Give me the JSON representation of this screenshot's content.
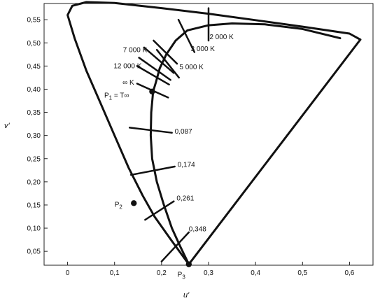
{
  "chart_data": {
    "type": "line",
    "title": "",
    "xlabel": "u'",
    "ylabel": "v'",
    "xlim": [
      -0.05,
      0.65
    ],
    "ylim": [
      0.02,
      0.585
    ],
    "grid": false,
    "x_ticks": [
      {
        "value": 0,
        "label": "0"
      },
      {
        "value": 0.1,
        "label": "0,1"
      },
      {
        "value": 0.2,
        "label": "0,2"
      },
      {
        "value": 0.3,
        "label": "0,3"
      },
      {
        "value": 0.4,
        "label": "0,4"
      },
      {
        "value": 0.5,
        "label": "0,5"
      },
      {
        "value": 0.6,
        "label": "0,6"
      }
    ],
    "y_ticks": [
      {
        "value": 0.05,
        "label": "0,05"
      },
      {
        "value": 0.1,
        "label": "0,10"
      },
      {
        "value": 0.15,
        "label": "0,15"
      },
      {
        "value": 0.2,
        "label": "0,20"
      },
      {
        "value": 0.25,
        "label": "0,25"
      },
      {
        "value": 0.3,
        "label": "0,30"
      },
      {
        "value": 0.35,
        "label": "0,35"
      },
      {
        "value": 0.4,
        "label": "0,40"
      },
      {
        "value": 0.45,
        "label": "0,45"
      },
      {
        "value": 0.5,
        "label": "0,50"
      },
      {
        "value": 0.55,
        "label": "0,55"
      }
    ],
    "spectrum_locus": [
      [
        0.258,
        0.022
      ],
      [
        0.22,
        0.075
      ],
      [
        0.185,
        0.125
      ],
      [
        0.16,
        0.17
      ],
      [
        0.13,
        0.23
      ],
      [
        0.1,
        0.3
      ],
      [
        0.07,
        0.37
      ],
      [
        0.04,
        0.44
      ],
      [
        0.015,
        0.51
      ],
      [
        0.0,
        0.56
      ],
      [
        0.01,
        0.58
      ],
      [
        0.04,
        0.588
      ],
      [
        0.1,
        0.586
      ],
      [
        0.2,
        0.575
      ],
      [
        0.3,
        0.563
      ],
      [
        0.4,
        0.549
      ],
      [
        0.5,
        0.535
      ],
      [
        0.6,
        0.52
      ],
      [
        0.623,
        0.507
      ]
    ],
    "purple_line": [
      [
        0.623,
        0.507
      ],
      [
        0.258,
        0.022
      ]
    ],
    "planckian_locus": [
      [
        0.58,
        0.51
      ],
      [
        0.5,
        0.53
      ],
      [
        0.42,
        0.54
      ],
      [
        0.35,
        0.542
      ],
      [
        0.3,
        0.538
      ],
      [
        0.255,
        0.527
      ],
      [
        0.23,
        0.505
      ],
      [
        0.21,
        0.475
      ],
      [
        0.196,
        0.445
      ],
      [
        0.188,
        0.415
      ],
      [
        0.182,
        0.395
      ],
      [
        0.178,
        0.35
      ],
      [
        0.177,
        0.3
      ],
      [
        0.18,
        0.25
      ],
      [
        0.19,
        0.2
      ],
      [
        0.205,
        0.15
      ],
      [
        0.222,
        0.1
      ],
      [
        0.24,
        0.06
      ],
      [
        0.258,
        0.022
      ]
    ],
    "isotemperature_lines": [
      {
        "label": "2 000 K",
        "from": [
          0.3,
          0.575
        ],
        "to": [
          0.3,
          0.505
        ],
        "label_at": [
          0.302,
          0.508
        ]
      },
      {
        "label": "3 000 K",
        "from": [
          0.236,
          0.55
        ],
        "to": [
          0.27,
          0.48
        ],
        "label_at": [
          0.262,
          0.482
        ]
      },
      {
        "label": "5 000 K",
        "from": [
          0.19,
          0.485
        ],
        "to": [
          0.237,
          0.425
        ],
        "label_at": [
          0.238,
          0.443
        ]
      },
      {
        "label": "7 000 K",
        "label_at": [
          0.118,
          0.48
        ]
      },
      {
        "label": "12 000 K",
        "label_at": [
          0.098,
          0.445
        ]
      },
      {
        "label": "∞ K",
        "from": [
          0.148,
          0.412
        ],
        "to": [
          0.214,
          0.382
        ],
        "label_at": [
          0.117,
          0.41
        ]
      },
      {
        "label": "0,087",
        "from": [
          0.132,
          0.317
        ],
        "to": [
          0.222,
          0.306
        ],
        "label_at": [
          0.228,
          0.304
        ]
      },
      {
        "label": "0,174",
        "from": [
          0.135,
          0.215
        ],
        "to": [
          0.228,
          0.233
        ],
        "label_at": [
          0.234,
          0.232
        ]
      },
      {
        "label": "0,261",
        "from": [
          0.165,
          0.118
        ],
        "to": [
          0.226,
          0.158
        ],
        "label_at": [
          0.232,
          0.16
        ]
      },
      {
        "label": "0,348",
        "from": [
          0.2,
          0.028
        ],
        "to": [
          0.258,
          0.091
        ],
        "label_at": [
          0.258,
          0.093
        ]
      }
    ],
    "short_ticks": [
      {
        "from": [
          0.183,
          0.505
        ],
        "to": [
          0.233,
          0.455
        ]
      },
      {
        "from": [
          0.163,
          0.49
        ],
        "to": [
          0.226,
          0.435
        ]
      },
      {
        "from": [
          0.152,
          0.468
        ],
        "to": [
          0.219,
          0.42
        ]
      },
      {
        "from": [
          0.148,
          0.45
        ],
        "to": [
          0.216,
          0.41
        ]
      }
    ],
    "points": [
      {
        "label": "P",
        "subscript": "1",
        "suffix": " = T∞",
        "u": 0.18,
        "v": 0.395,
        "label_at": [
          0.078,
          0.382
        ]
      },
      {
        "label": "P",
        "subscript": "2",
        "suffix": "",
        "u": 0.141,
        "v": 0.154,
        "label_at": [
          0.1,
          0.146
        ]
      },
      {
        "label": "P",
        "subscript": "3",
        "suffix": "",
        "u": 0.258,
        "v": 0.022,
        "label_at": [
          0.234,
          -0.005
        ]
      }
    ]
  }
}
